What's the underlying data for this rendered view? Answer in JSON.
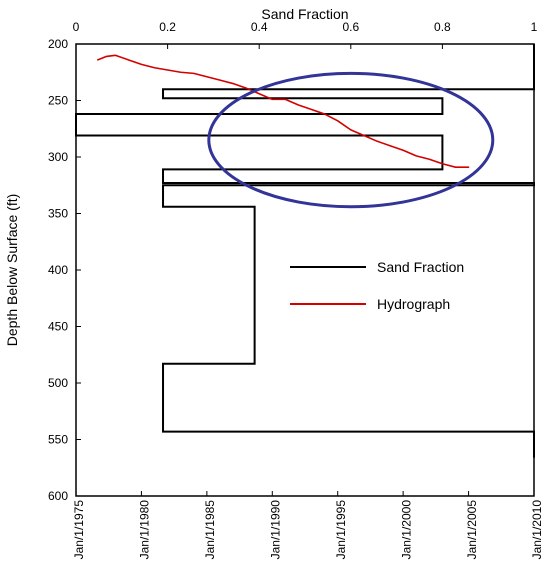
{
  "chart_data": {
    "type": "line",
    "top_axis": {
      "label": "Sand Fraction",
      "range": [
        0,
        1
      ],
      "ticks": [
        0,
        0.2,
        0.4,
        0.6,
        0.8,
        1
      ],
      "tick_labels": [
        "0",
        "0.2",
        "0.4",
        "0.6",
        "0.8",
        "1"
      ]
    },
    "left_axis": {
      "label": "Depth Below Surface (ft)",
      "range": [
        200,
        600
      ],
      "ticks": [
        200,
        250,
        300,
        350,
        400,
        450,
        500,
        550,
        600
      ],
      "tick_labels": [
        "200",
        "250",
        "300",
        "350",
        "400",
        "450",
        "500",
        "550",
        "600"
      ],
      "inverted": true
    },
    "bottom_axis": {
      "range": [
        "1975-01-01",
        "2010-01-01"
      ],
      "ticks": [
        "1975-01-01",
        "1980-01-01",
        "1985-01-01",
        "1990-01-01",
        "1995-01-01",
        "2000-01-01",
        "2005-01-01",
        "2010-01-01"
      ],
      "tick_labels": [
        "Jan/1/1975",
        "Jan/1/1980",
        "Jan/1/1985",
        "Jan/1/1990",
        "Jan/1/1995",
        "Jan/1/2000",
        "Jan/1/2005",
        "Jan/1/2010"
      ]
    },
    "legend": {
      "placement": "right",
      "entries": [
        {
          "label": "Sand Fraction",
          "color": "#000000"
        },
        {
          "label": "Hydrograph",
          "color": "#d40000"
        }
      ]
    },
    "series": [
      {
        "name": "Sand Fraction",
        "color": "#000000",
        "points": [
          [
            1,
            200
          ],
          [
            1,
            240
          ],
          [
            0.19,
            240
          ],
          [
            0.19,
            248
          ],
          [
            0.8,
            248
          ],
          [
            0.8,
            262
          ],
          [
            0,
            262
          ],
          [
            0,
            281
          ],
          [
            0.8,
            281
          ],
          [
            0.8,
            311
          ],
          [
            0.19,
            311
          ],
          [
            0.19,
            323
          ],
          [
            1,
            323
          ],
          [
            1,
            325
          ],
          [
            0.19,
            325
          ],
          [
            0.19,
            344
          ],
          [
            0.39,
            344
          ],
          [
            0.39,
            483
          ],
          [
            0.19,
            483
          ],
          [
            0.19,
            543
          ],
          [
            1,
            543
          ],
          [
            1,
            566
          ]
        ]
      },
      {
        "name": "Hydrograph",
        "color": "#d40000",
        "points": [
          [
            "1976-09-01",
            214
          ],
          [
            "1977-05-01",
            211
          ],
          [
            "1978-01-01",
            210
          ],
          [
            "1979-01-01",
            214
          ],
          [
            "1980-01-01",
            218
          ],
          [
            "1981-01-01",
            221
          ],
          [
            "1982-01-01",
            223
          ],
          [
            "1983-01-01",
            225
          ],
          [
            "1984-01-01",
            226
          ],
          [
            "1985-01-01",
            229
          ],
          [
            "1986-01-01",
            232
          ],
          [
            "1987-01-01",
            235
          ],
          [
            "1988-01-01",
            239
          ],
          [
            "1989-01-01",
            244
          ],
          [
            "1990-01-01",
            249
          ],
          [
            "1991-01-01",
            249
          ],
          [
            "1992-01-01",
            254
          ],
          [
            "1993-01-01",
            258
          ],
          [
            "1994-01-01",
            262
          ],
          [
            "1995-01-01",
            268
          ],
          [
            "1996-01-01",
            276
          ],
          [
            "1997-01-01",
            281
          ],
          [
            "1998-01-01",
            286
          ],
          [
            "1999-01-01",
            290
          ],
          [
            "2000-01-01",
            294
          ],
          [
            "2001-01-01",
            299
          ],
          [
            "2002-01-01",
            302
          ],
          [
            "2003-01-01",
            306
          ],
          [
            "2004-01-01",
            309
          ],
          [
            "2005-01-01",
            309
          ]
        ]
      }
    ],
    "annotations": [
      {
        "type": "ellipse",
        "center_x": 0.6,
        "center_y": 285,
        "x_radius": 0.31,
        "y_radius": 59,
        "color": "#323497"
      }
    ]
  }
}
